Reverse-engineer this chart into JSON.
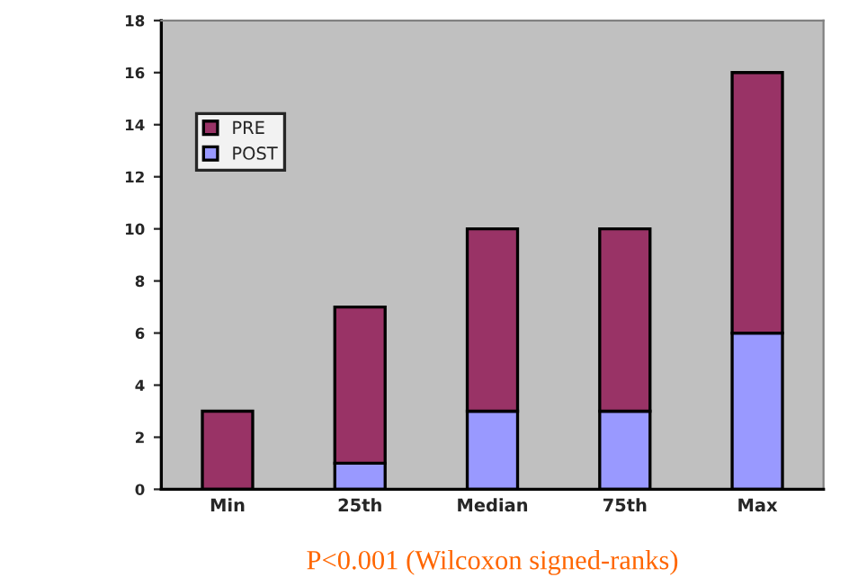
{
  "chart_data": {
    "type": "bar",
    "stacked": true,
    "categories": [
      "Min",
      "25th",
      "Median",
      "75th",
      "Max"
    ],
    "series": [
      {
        "name": "POST",
        "color": "#9999ff",
        "values": [
          0,
          1,
          3,
          3,
          6
        ]
      },
      {
        "name": "PRE",
        "color": "#993366",
        "values": [
          3,
          6,
          7,
          7,
          10
        ]
      }
    ],
    "ylim": [
      0,
      18
    ],
    "yticks": [
      0,
      2,
      4,
      6,
      8,
      10,
      12,
      14,
      16,
      18
    ],
    "grid": false,
    "legend": "top left",
    "annotations": [
      "P<0.001 (Wilcoxon signed-ranks)"
    ]
  }
}
